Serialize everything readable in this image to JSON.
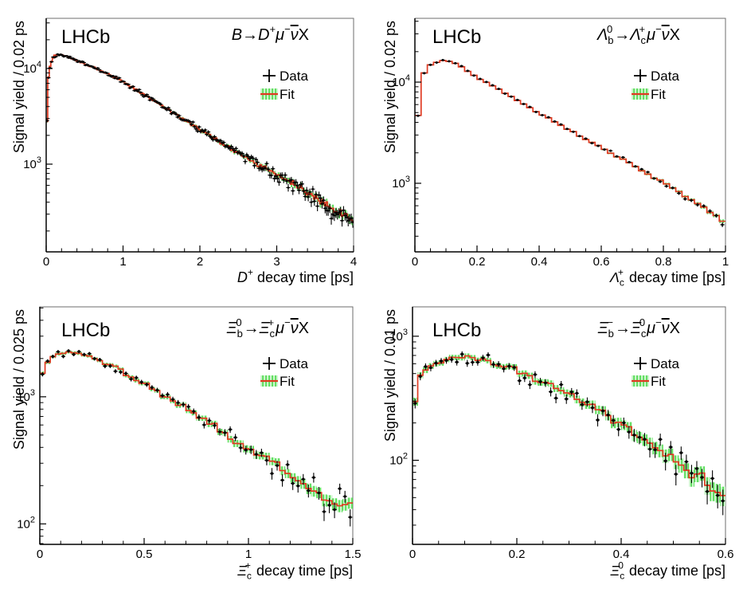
{
  "colors": {
    "background": "#ffffff",
    "fit_line": "#e03a22",
    "band_base": "#cdf6cd",
    "band_stripe": "#58dc58",
    "data_marker": "#000000",
    "axis": "#000000",
    "frame": "#6e6e6e",
    "text": "#000000"
  },
  "legend": {
    "data_label": "Data",
    "fit_label": "Fit"
  },
  "chart_data": [
    {
      "id": "B-to-Dplus-mu-nu-X",
      "type": "histogram_with_fit",
      "log_y": true,
      "corner_label": "LHCb",
      "title_tokens": [
        {
          "t": "B",
          "i": 1
        },
        {
          "t": "→"
        },
        {
          "t": "D",
          "i": 1,
          "sup": "+"
        },
        {
          "t": "μ",
          "i": 1,
          "sup": "−"
        },
        {
          "t": "ν",
          "i": 1,
          "bar": 1
        },
        {
          "t": "X"
        }
      ],
      "x_axis": {
        "label_tokens": [
          {
            "t": "D",
            "i": 1,
            "sup": "+"
          },
          {
            "t": " decay time [ps]"
          }
        ],
        "min": 0,
        "max": 4,
        "major_ticks": [
          {
            "v": 0,
            "label": "0"
          },
          {
            "v": 1,
            "label": "1"
          },
          {
            "v": 2,
            "label": "2"
          },
          {
            "v": 3,
            "label": "3"
          },
          {
            "v": 4,
            "label": "4"
          }
        ],
        "minor_step": 0.2
      },
      "y_axis": {
        "title": "Signal yield / 0.02 ps",
        "min": 121,
        "max": 33500,
        "labeled_decades": [
          3,
          4
        ]
      },
      "bin_width": 0.02,
      "fit_anchors": {
        "t": [
          0.01,
          0.03,
          0.05,
          0.08,
          0.12,
          0.18,
          0.25,
          0.35,
          0.5,
          0.65,
          0.8,
          1.0,
          1.25,
          1.5,
          1.75,
          2.0,
          2.25,
          2.5,
          2.75,
          3.0,
          3.25,
          3.5,
          3.75,
          4.0
        ],
        "yield": [
          2800,
          8100,
          10500,
          12800,
          13900,
          14000,
          13500,
          12600,
          11200,
          10000,
          8800,
          7300,
          5500,
          4150,
          3100,
          2300,
          1730,
          1300,
          1000,
          780,
          590,
          455,
          330,
          245
        ]
      }
    },
    {
      "id": "Lambdab0-to-Lambdacplus-mu-nu-X",
      "type": "histogram_with_fit",
      "log_y": true,
      "corner_label": "LHCb",
      "title_tokens": [
        {
          "t": "Λ",
          "i": 1,
          "sub": "b",
          "sup": "0"
        },
        {
          "t": "→"
        },
        {
          "t": "Λ",
          "i": 1,
          "sub": "c",
          "sup": "+"
        },
        {
          "t": "μ",
          "i": 1,
          "sup": "−"
        },
        {
          "t": "ν",
          "i": 1,
          "bar": 1
        },
        {
          "t": "X"
        }
      ],
      "x_axis": {
        "label_tokens": [
          {
            "t": "Λ",
            "i": 1,
            "sub": "c",
            "sup": "+"
          },
          {
            "t": " decay time [ps]"
          }
        ],
        "min": 0,
        "max": 1,
        "major_ticks": [
          {
            "v": 0,
            "label": "0"
          },
          {
            "v": 0.2,
            "label": "0.2"
          },
          {
            "v": 0.4,
            "label": "0.4"
          },
          {
            "v": 0.6,
            "label": "0.6"
          },
          {
            "v": 0.8,
            "label": "0.8"
          },
          {
            "v": 1,
            "label": "1"
          }
        ],
        "minor_step": 0.05
      },
      "y_axis": {
        "title": "Signal yield / 0.02 ps",
        "min": 210,
        "max": 42700,
        "labeled_decades": [
          3,
          4
        ]
      },
      "bin_width": 0.02,
      "fit_anchors": {
        "t": [
          0.01,
          0.02,
          0.05,
          0.08,
          0.1,
          0.12,
          0.15,
          0.2,
          0.25,
          0.3,
          0.35,
          0.4,
          0.45,
          0.5,
          0.55,
          0.6,
          0.65,
          0.7,
          0.75,
          0.8,
          0.85,
          0.9,
          0.95,
          1.0
        ],
        "yield": [
          4700,
          11300,
          14800,
          16200,
          16400,
          15800,
          14200,
          11000,
          9200,
          7500,
          6100,
          4950,
          4050,
          3300,
          2720,
          2260,
          1850,
          1520,
          1240,
          1010,
          830,
          660,
          520,
          410
        ]
      }
    },
    {
      "id": "Xib0-to-Xicplus-mu-nu-X",
      "type": "histogram_with_fit",
      "log_y": true,
      "corner_label": "LHCb",
      "title_tokens": [
        {
          "t": "Ξ",
          "i": 1,
          "sub": "b",
          "sup": "0"
        },
        {
          "t": "→"
        },
        {
          "t": "Ξ",
          "i": 1,
          "sub": "c",
          "sup": "+"
        },
        {
          "t": "μ",
          "i": 1,
          "sup": "−"
        },
        {
          "t": "ν",
          "i": 1,
          "bar": 1
        },
        {
          "t": "X"
        }
      ],
      "x_axis": {
        "label_tokens": [
          {
            "t": "Ξ",
            "i": 1,
            "sub": "c",
            "sup": "+"
          },
          {
            "t": " decay time [ps]"
          }
        ],
        "min": 0,
        "max": 1.5,
        "major_ticks": [
          {
            "v": 0,
            "label": "0"
          },
          {
            "v": 0.5,
            "label": "0.5"
          },
          {
            "v": 1,
            "label": "1"
          },
          {
            "v": 1.5,
            "label": "1.5"
          }
        ],
        "minor_step": 0.1
      },
      "y_axis": {
        "title": "Signal yield / 0.025 ps",
        "min": 69,
        "max": 5100,
        "labeled_decades": [
          2,
          3
        ]
      },
      "bin_width": 0.025,
      "fit_anchors": {
        "t": [
          0.0125,
          0.04,
          0.075,
          0.1,
          0.15,
          0.2,
          0.25,
          0.3,
          0.35,
          0.4,
          0.45,
          0.5,
          0.55,
          0.6,
          0.65,
          0.7,
          0.75,
          0.8,
          0.85,
          0.9,
          0.95,
          1.0,
          1.05,
          1.1,
          1.15,
          1.2,
          1.25,
          1.3,
          1.35,
          1.4,
          1.45,
          1.5
        ],
        "yield": [
          1500,
          1950,
          2150,
          2200,
          2230,
          2150,
          2020,
          1870,
          1720,
          1560,
          1400,
          1260,
          1130,
          1010,
          900,
          800,
          710,
          630,
          560,
          500,
          445,
          395,
          350,
          310,
          277,
          246,
          219,
          195,
          174,
          155,
          140,
          130
        ]
      }
    },
    {
      "id": "Xibminus-to-Xic0-mu-nu-X",
      "type": "histogram_with_fit",
      "log_y": true,
      "corner_label": "LHCb",
      "title_tokens": [
        {
          "t": "Ξ",
          "i": 1,
          "sub": "b",
          "sup": "−"
        },
        {
          "t": "→"
        },
        {
          "t": "Ξ",
          "i": 1,
          "sub": "c",
          "sup": "0"
        },
        {
          "t": "μ",
          "i": 1,
          "sup": "−"
        },
        {
          "t": "ν",
          "i": 1,
          "bar": 1
        },
        {
          "t": "X"
        }
      ],
      "x_axis": {
        "label_tokens": [
          {
            "t": "Ξ",
            "i": 1,
            "sub": "c",
            "sup": "0"
          },
          {
            "t": " decay time [ps]"
          }
        ],
        "min": 0,
        "max": 0.6,
        "major_ticks": [
          {
            "v": 0,
            "label": "0"
          },
          {
            "v": 0.2,
            "label": "0.2"
          },
          {
            "v": 0.4,
            "label": "0.4"
          },
          {
            "v": 0.6,
            "label": "0.6"
          }
        ],
        "minor_step": 0.05
      },
      "y_axis": {
        "title": "Signal yield / 0.01 ps",
        "min": 21,
        "max": 1725,
        "labeled_decades": [
          2,
          3
        ]
      },
      "bin_width": 0.01,
      "fit_anchors": {
        "t": [
          0.005,
          0.015,
          0.03,
          0.05,
          0.08,
          0.1,
          0.12,
          0.15,
          0.18,
          0.2,
          0.23,
          0.26,
          0.29,
          0.32,
          0.35,
          0.38,
          0.4,
          0.43,
          0.46,
          0.48,
          0.5,
          0.52,
          0.55,
          0.58,
          0.6
        ],
        "yield": [
          300,
          490,
          555,
          610,
          655,
          670,
          660,
          630,
          580,
          510,
          450,
          400,
          340,
          300,
          260,
          225,
          190,
          160,
          135,
          120,
          98,
          85,
          70,
          57,
          52
        ]
      }
    }
  ]
}
